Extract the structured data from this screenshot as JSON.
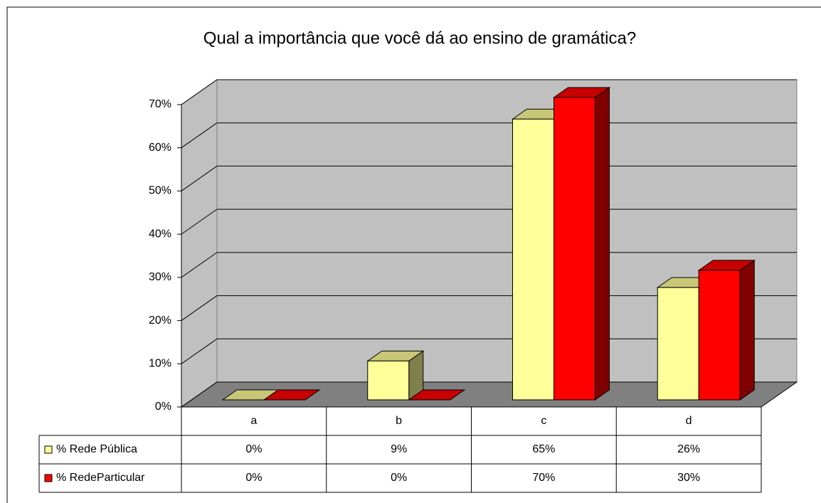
{
  "chart_data": {
    "type": "bar3d",
    "title": "Qual a importância que você dá ao ensino de gramática?",
    "categories": [
      "a",
      "b",
      "c",
      "d"
    ],
    "series": [
      {
        "name": "% Rede Pública",
        "color": "#ffff99",
        "values": [
          0,
          9,
          65,
          26
        ],
        "value_labels": [
          "0%",
          "9%",
          "65%",
          "26%"
        ]
      },
      {
        "name": "% RedeParticular",
        "color": "#ff0000",
        "values": [
          0,
          0,
          70,
          30
        ],
        "value_labels": [
          "0%",
          "0%",
          "70%",
          "30%"
        ]
      }
    ],
    "ylim": [
      0,
      70
    ],
    "yticks": [
      {
        "value": 0,
        "label": "0%"
      },
      {
        "value": 10,
        "label": "10%"
      },
      {
        "value": 20,
        "label": "20%"
      },
      {
        "value": 30,
        "label": "30%"
      },
      {
        "value": 40,
        "label": "40%"
      },
      {
        "value": 50,
        "label": "50%"
      },
      {
        "value": 60,
        "label": "60%"
      },
      {
        "value": 70,
        "label": "70%"
      }
    ],
    "grid": true
  }
}
